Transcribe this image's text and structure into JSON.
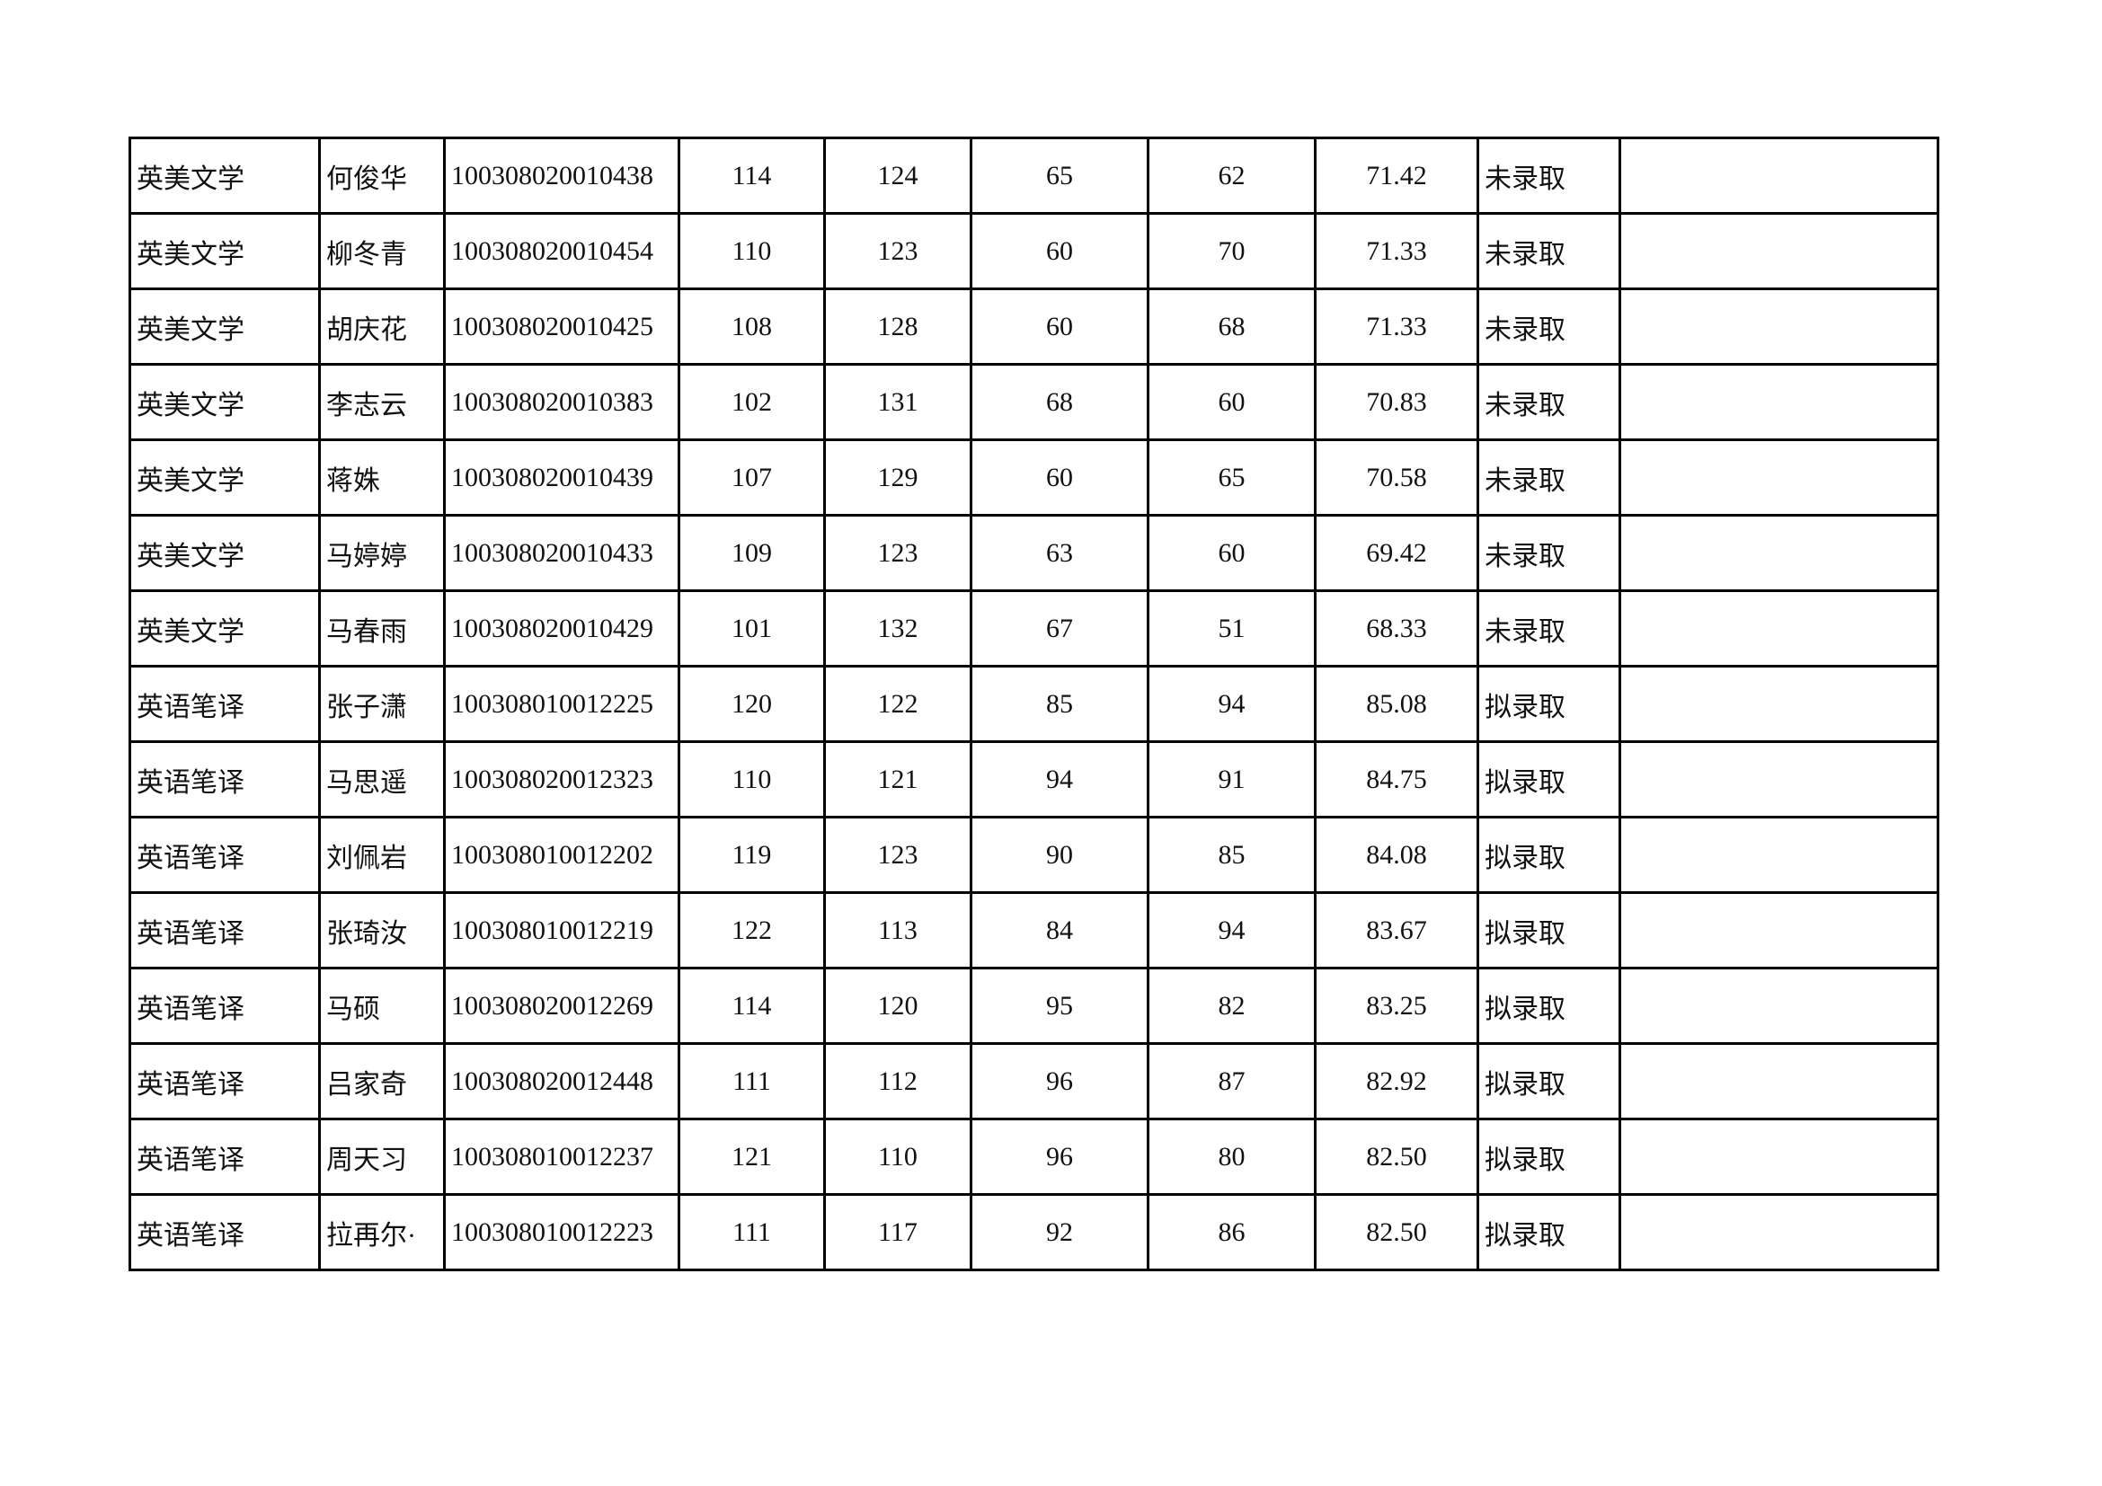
{
  "table": {
    "rows": [
      [
        "英美文学",
        "何俊华",
        "100308020010438",
        "114",
        "124",
        "65",
        "62",
        "71.42",
        "未录取"
      ],
      [
        "英美文学",
        "柳冬青",
        "100308020010454",
        "110",
        "123",
        "60",
        "70",
        "71.33",
        "未录取"
      ],
      [
        "英美文学",
        "胡庆花",
        "100308020010425",
        "108",
        "128",
        "60",
        "68",
        "71.33",
        "未录取"
      ],
      [
        "英美文学",
        "李志云",
        "100308020010383",
        "102",
        "131",
        "68",
        "60",
        "70.83",
        "未录取"
      ],
      [
        "英美文学",
        "蒋姝",
        "100308020010439",
        "107",
        "129",
        "60",
        "65",
        "70.58",
        "未录取"
      ],
      [
        "英美文学",
        "马婷婷",
        "100308020010433",
        "109",
        "123",
        "63",
        "60",
        "69.42",
        "未录取"
      ],
      [
        "英美文学",
        "马春雨",
        "100308020010429",
        "101",
        "132",
        "67",
        "51",
        "68.33",
        "未录取"
      ],
      [
        "英语笔译",
        "张子潇",
        "100308010012225",
        "120",
        "122",
        "85",
        "94",
        "85.08",
        "拟录取"
      ],
      [
        "英语笔译",
        "马思遥",
        "100308020012323",
        "110",
        "121",
        "94",
        "91",
        "84.75",
        "拟录取"
      ],
      [
        "英语笔译",
        "刘佩岩",
        "100308010012202",
        "119",
        "123",
        "90",
        "85",
        "84.08",
        "拟录取"
      ],
      [
        "英语笔译",
        "张琦汝",
        "100308010012219",
        "122",
        "113",
        "84",
        "94",
        "83.67",
        "拟录取"
      ],
      [
        "英语笔译",
        "马硕",
        "100308020012269",
        "114",
        "120",
        "95",
        "82",
        "83.25",
        "拟录取"
      ],
      [
        "英语笔译",
        "吕家奇",
        "100308020012448",
        "111",
        "112",
        "96",
        "87",
        "82.92",
        "拟录取"
      ],
      [
        "英语笔译",
        "周天习",
        "100308010012237",
        "121",
        "110",
        "96",
        "80",
        "82.50",
        "拟录取"
      ],
      [
        "英语笔译",
        "拉再尔·",
        "100308010012223",
        "111",
        "117",
        "92",
        "86",
        "82.50",
        "拟录取"
      ]
    ]
  }
}
